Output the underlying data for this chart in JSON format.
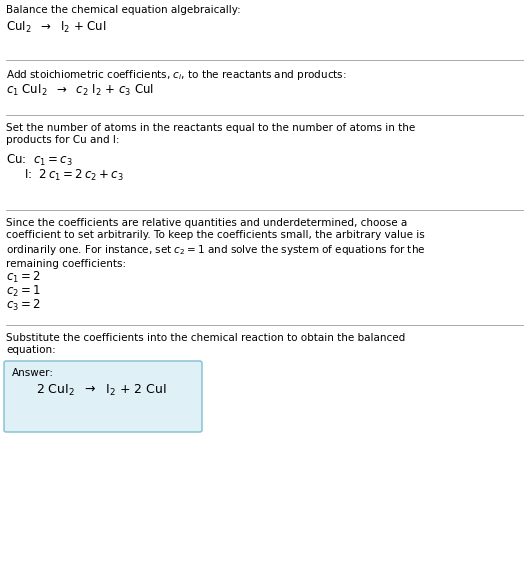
{
  "bg_color": "#ffffff",
  "text_color": "#000000",
  "section1_title": "Balance the chemical equation algebraically:",
  "section2_title": "Add stoichiometric coefficients, $c_i$, to the reactants and products:",
  "section3_title": "Set the number of atoms in the reactants equal to the number of atoms in the\nproducts for Cu and I:",
  "section4_title1": "Since the coefficients are relative quantities and underdetermined, choose a\ncoefficient to set arbitrarily. To keep the coefficients small, the arbitrary value is",
  "section4_title2": "ordinarily one. For instance, set $c_2 = 1$ and solve the system of equations for the\nremaining coefficients:",
  "section5_title": "Substitute the coefficients into the chemical reaction to obtain the balanced\nequation:",
  "answer_label": "Answer:",
  "answer_box_color": "#dff0f7",
  "answer_box_border": "#7fbfcf",
  "divider_color": "#aaaaaa",
  "fs_body": 7.5,
  "fs_eq": 8.5,
  "fs_answer": 9.0
}
